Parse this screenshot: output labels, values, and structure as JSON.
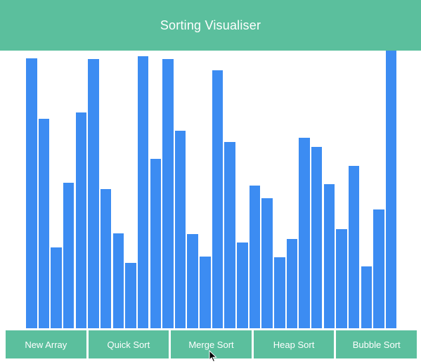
{
  "app": {
    "title": "Sorting Visualiser"
  },
  "theme": {
    "header_color": "#5bbf9d",
    "button_color": "#5bbf9d",
    "bar_color": "#3c8cf2",
    "text_color": "#ffffff"
  },
  "array": {
    "max_value": 395,
    "values": [
      384,
      298,
      115,
      207,
      307,
      383,
      198,
      135,
      93,
      387,
      241,
      383,
      281,
      134,
      102,
      367,
      265,
      122,
      203,
      185,
      101,
      127,
      271,
      258,
      205,
      141,
      231,
      88,
      169,
      395
    ]
  },
  "controls": [
    {
      "id": "new-array",
      "label": "New Array"
    },
    {
      "id": "quick-sort",
      "label": "Quick Sort"
    },
    {
      "id": "merge-sort",
      "label": "Merge Sort"
    },
    {
      "id": "heap-sort",
      "label": "Heap Sort"
    },
    {
      "id": "bubble-sort",
      "label": "Bubble Sort"
    }
  ],
  "pointer": {
    "icon": "mouse-pointer-icon"
  }
}
